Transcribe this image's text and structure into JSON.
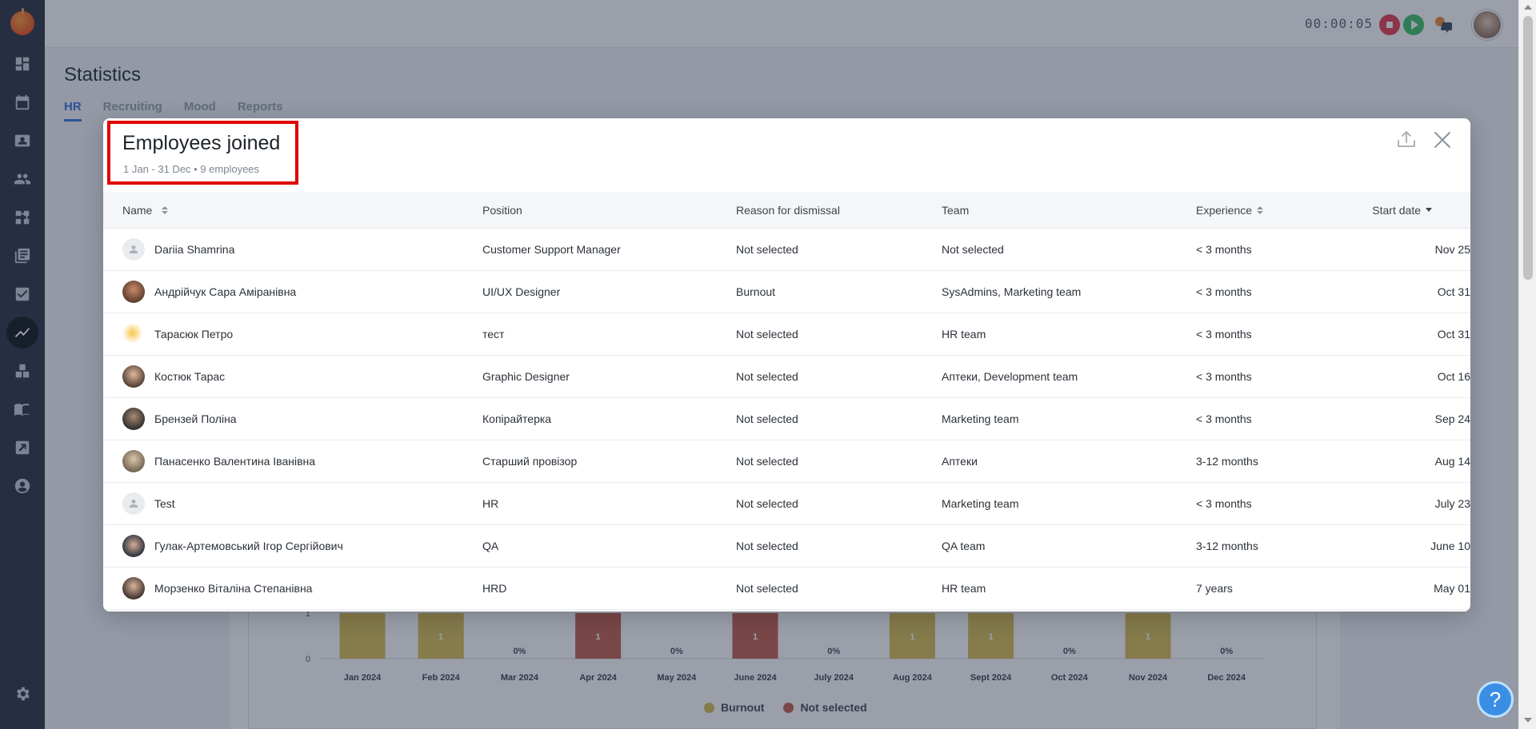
{
  "topbar": {
    "timer": "00:00:05"
  },
  "page": {
    "title": "Statistics",
    "tabs": [
      {
        "label": "HR",
        "active": true
      },
      {
        "label": "Recruiting",
        "active": false
      },
      {
        "label": "Mood",
        "active": false
      },
      {
        "label": "Reports",
        "active": false
      }
    ]
  },
  "chart_data": {
    "type": "bar",
    "categories": [
      "Jan 2024",
      "Feb 2024",
      "Mar 2024",
      "Apr 2024",
      "May 2024",
      "June 2024",
      "July 2024",
      "Aug 2024",
      "Sept 2024",
      "Oct 2024",
      "Nov 2024",
      "Dec 2024"
    ],
    "series": [
      {
        "name": "Burnout",
        "color": "#d9bd52",
        "values": [
          1,
          1,
          0,
          0,
          0,
          0,
          0,
          1,
          1,
          0,
          1,
          0
        ]
      },
      {
        "name": "Not selected",
        "color": "#c55f4d",
        "values": [
          0,
          0,
          0,
          1,
          0,
          1,
          0,
          0,
          0,
          0,
          0,
          0
        ]
      }
    ],
    "bar_labels": [
      "",
      "1",
      "0%",
      "1",
      "0%",
      "1",
      "0%",
      "1",
      "1",
      "0%",
      "1",
      "0%"
    ],
    "y_ticks": [
      "1",
      "0"
    ],
    "ylim": [
      0,
      1
    ]
  },
  "modal": {
    "title": "Employees joined",
    "subtitle": "1 Jan - 31 Dec • 9 employees",
    "columns": {
      "name": "Name",
      "position": "Position",
      "reason": "Reason for dismissal",
      "team": "Team",
      "experience": "Experience",
      "start_date": "Start date"
    },
    "rows": [
      {
        "name": "Dariia Shamrina",
        "position": "Customer Support Manager",
        "reason": "Not selected",
        "team": "Not selected",
        "experience": "< 3 months",
        "start_date": "Nov 25"
      },
      {
        "name": "Андрійчук Сара Аміранівна",
        "position": "UI/UX Designer",
        "reason": "Burnout",
        "team": "SysAdmins, Marketing team",
        "experience": "< 3 months",
        "start_date": "Oct 31"
      },
      {
        "name": "Тарасюк Петро",
        "position": "тест",
        "reason": "Not selected",
        "team": "HR team",
        "experience": "< 3 months",
        "start_date": "Oct 31"
      },
      {
        "name": "Костюк Тарас",
        "position": "Graphic Designer",
        "reason": "Not selected",
        "team": "Аптеки, Development team",
        "experience": "< 3 months",
        "start_date": "Oct 16"
      },
      {
        "name": "Брензей Поліна",
        "position": "Копірайтерка",
        "reason": "Not selected",
        "team": "Marketing team",
        "experience": "< 3 months",
        "start_date": "Sep 24"
      },
      {
        "name": "Панасенко Валентина Іванівна",
        "position": "Старший провізор",
        "reason": "Not selected",
        "team": "Аптеки",
        "experience": "3-12 months",
        "start_date": "Aug 14"
      },
      {
        "name": "Test",
        "position": "HR",
        "reason": "Not selected",
        "team": "Marketing team",
        "experience": "< 3 months",
        "start_date": "July 23"
      },
      {
        "name": "Гулак-Артемовський Ігор Сергійович",
        "position": "QA",
        "reason": "Not selected",
        "team": "QA team",
        "experience": "3-12 months",
        "start_date": "June 10"
      },
      {
        "name": "Морзенко Віталіна Степанівна",
        "position": "HRD",
        "reason": "Not selected",
        "team": "HR team",
        "experience": "7 years",
        "start_date": "May 01"
      }
    ]
  }
}
